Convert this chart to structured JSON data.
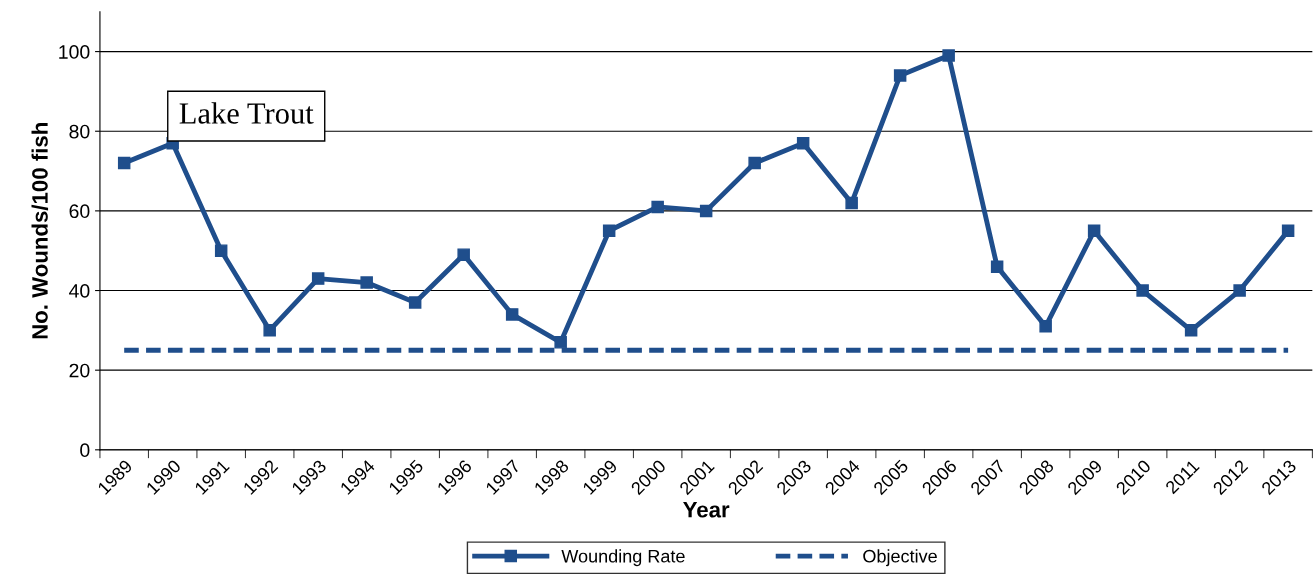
{
  "chart_data": {
    "type": "line",
    "xlabel": "Year",
    "ylabel": "No. Wounds/100 fish",
    "categories": [
      "1989",
      "1990",
      "1991",
      "1992",
      "1993",
      "1994",
      "1995",
      "1996",
      "1997",
      "1998",
      "1999",
      "2000",
      "2001",
      "2002",
      "2003",
      "2004",
      "2005",
      "2006",
      "2007",
      "2008",
      "2009",
      "2010",
      "2011",
      "2012",
      "2013"
    ],
    "series": [
      {
        "name": "Wounding Rate",
        "color": "#1f4e8c",
        "marker": "square",
        "line_style": "solid",
        "values": [
          72,
          77,
          50,
          30,
          43,
          42,
          37,
          49,
          34,
          27,
          55,
          61,
          60,
          72,
          77,
          62,
          94,
          99,
          46,
          31,
          55,
          40,
          30,
          40,
          55
        ]
      },
      {
        "name": "Objective",
        "color": "#1f4e8c",
        "marker": "none",
        "line_style": "dashed",
        "values": [
          25,
          25,
          25,
          25,
          25,
          25,
          25,
          25,
          25,
          25,
          25,
          25,
          25,
          25,
          25,
          25,
          25,
          25,
          25,
          25,
          25,
          25,
          25,
          25,
          25
        ]
      }
    ],
    "ylim": [
      0,
      110
    ],
    "yticks": [
      0,
      20,
      40,
      60,
      80,
      100
    ],
    "grid": "y",
    "legend": "bottom",
    "annotations": [
      "Lake Trout"
    ]
  }
}
